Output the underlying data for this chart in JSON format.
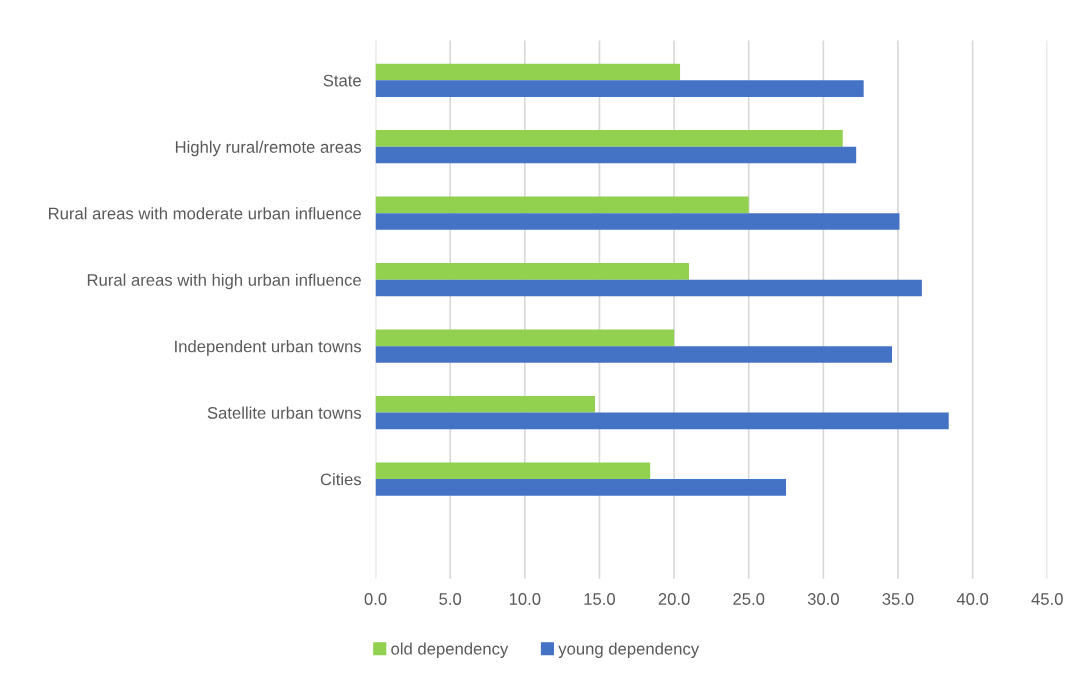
{
  "chart_data": {
    "type": "bar",
    "orientation": "horizontal",
    "categories": [
      "State",
      "Highly rural/remote areas",
      "Rural areas with moderate urban influence",
      "Rural areas with high urban influence",
      "Independent urban towns",
      "Satellite urban towns",
      "Cities"
    ],
    "series": [
      {
        "name": "old dependency",
        "color": "#92d050",
        "values": [
          20.4,
          31.3,
          25.0,
          21.0,
          20.0,
          14.7,
          18.4
        ]
      },
      {
        "name": "young dependency",
        "color": "#4472c4",
        "values": [
          32.7,
          32.2,
          35.1,
          36.6,
          34.6,
          38.4,
          27.5
        ]
      }
    ],
    "xlim": [
      0,
      45
    ],
    "xticks": [
      {
        "value": 0,
        "label": "0.0"
      },
      {
        "value": 5,
        "label": "5.0"
      },
      {
        "value": 10,
        "label": "10.0"
      },
      {
        "value": 15,
        "label": "15.0"
      },
      {
        "value": 20,
        "label": "20.0"
      },
      {
        "value": 25,
        "label": "25.0"
      },
      {
        "value": 30,
        "label": "30.0"
      },
      {
        "value": 35,
        "label": "35.0"
      },
      {
        "value": 40,
        "label": "40.0"
      },
      {
        "value": 45,
        "label": "45.0"
      }
    ],
    "grid": "x",
    "legend": "bottom"
  }
}
